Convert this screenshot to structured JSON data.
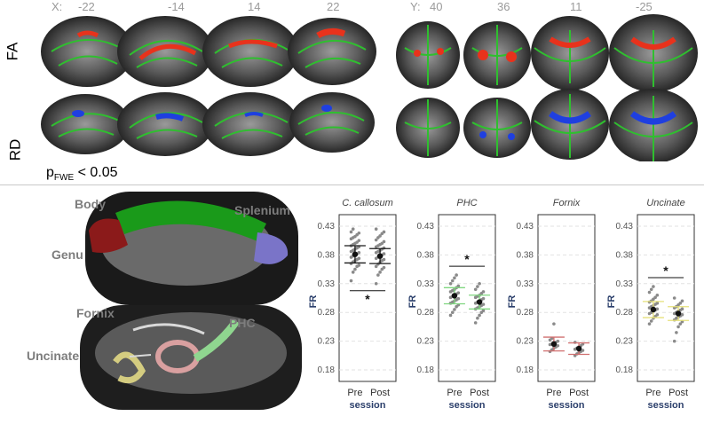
{
  "top_panel": {
    "x_prefix": "X:",
    "x_coords": [
      "-22",
      "-14",
      "14",
      "22"
    ],
    "y_prefix": "Y:",
    "y_coords": [
      "40",
      "36",
      "11",
      "-25"
    ],
    "row_labels": [
      "FA",
      "RD"
    ],
    "threshold_p": "p",
    "threshold_sub": "FWE",
    "threshold_rest": "< 0.05"
  },
  "tract_panel": {
    "labels": [
      "Body",
      "Splenium",
      "Genu",
      "Fornix",
      "PHC",
      "Uncinate"
    ]
  },
  "colors": {
    "fa_cluster": "#e8321c",
    "rd_cluster": "#1f3fe0",
    "skeleton": "#2fbf2f",
    "body_tract": "#1a9a1a",
    "genu_tract": "#8b1a1a",
    "splenium_tract": "#7a74c8",
    "fornix_tract": "#d9a0a0",
    "phc_tract": "#8fd68f",
    "uncinate_tract": "#d4cc80",
    "cc_bar": "#1a1a1a",
    "phc_bar": "#7fd67f",
    "fornix_bar": "#d07070",
    "uncinate_bar": "#e6e07a",
    "axis_label": "#2b3f6b"
  },
  "chart_data": [
    {
      "type": "scatter",
      "title": "C. callosum",
      "xlabel": "session",
      "ylabel": "FR",
      "categories": [
        "Pre",
        "Post"
      ],
      "ylim": [
        0.16,
        0.45
      ],
      "yticks": [
        "0.18",
        "0.23",
        "0.28",
        "0.33",
        "0.38",
        "0.43"
      ],
      "means": [
        0.381,
        0.378
      ],
      "ci_half_width": [
        0.015,
        0.013
      ],
      "significance": "*",
      "points": [
        [
          0.335,
          0.35,
          0.355,
          0.36,
          0.362,
          0.365,
          0.368,
          0.37,
          0.372,
          0.374,
          0.376,
          0.378,
          0.38,
          0.382,
          0.384,
          0.386,
          0.388,
          0.39,
          0.392,
          0.394,
          0.396,
          0.398,
          0.4,
          0.402,
          0.405,
          0.408,
          0.41,
          0.412,
          0.415,
          0.418,
          0.42,
          0.425
        ],
        [
          0.33,
          0.345,
          0.35,
          0.355,
          0.358,
          0.36,
          0.364,
          0.367,
          0.37,
          0.372,
          0.374,
          0.376,
          0.378,
          0.38,
          0.382,
          0.384,
          0.386,
          0.388,
          0.39,
          0.392,
          0.394,
          0.396,
          0.398,
          0.4,
          0.403,
          0.406,
          0.41,
          0.413,
          0.417,
          0.42,
          0.425
        ]
      ]
    },
    {
      "type": "scatter",
      "title": "PHC",
      "xlabel": "session",
      "ylabel": "FR",
      "categories": [
        "Pre",
        "Post"
      ],
      "ylim": [
        0.16,
        0.45
      ],
      "yticks": [
        "0.18",
        "0.23",
        "0.28",
        "0.33",
        "0.38",
        "0.43"
      ],
      "means": [
        0.309,
        0.298
      ],
      "ci_half_width": [
        0.014,
        0.012
      ],
      "significance": "*",
      "points": [
        [
          0.275,
          0.28,
          0.285,
          0.29,
          0.293,
          0.296,
          0.298,
          0.3,
          0.302,
          0.304,
          0.306,
          0.308,
          0.31,
          0.312,
          0.314,
          0.316,
          0.318,
          0.32,
          0.323,
          0.326,
          0.33,
          0.335,
          0.34,
          0.345
        ],
        [
          0.262,
          0.27,
          0.275,
          0.28,
          0.283,
          0.286,
          0.288,
          0.29,
          0.292,
          0.294,
          0.296,
          0.298,
          0.3,
          0.302,
          0.304,
          0.306,
          0.308,
          0.31,
          0.313,
          0.316,
          0.32,
          0.325,
          0.33
        ]
      ]
    },
    {
      "type": "scatter",
      "title": "Fornix",
      "xlabel": "session",
      "ylabel": "FR",
      "categories": [
        "Pre",
        "Post"
      ],
      "ylim": [
        0.16,
        0.45
      ],
      "yticks": [
        "0.18",
        "0.23",
        "0.28",
        "0.33",
        "0.38",
        "0.43"
      ],
      "means": [
        0.225,
        0.217
      ],
      "ci_half_width": [
        0.012,
        0.01
      ],
      "significance": "",
      "points": [
        [
          0.212,
          0.215,
          0.218,
          0.22,
          0.222,
          0.224,
          0.225,
          0.226,
          0.228,
          0.23,
          0.232,
          0.235,
          0.26
        ],
        [
          0.205,
          0.208,
          0.21,
          0.212,
          0.214,
          0.216,
          0.218,
          0.22,
          0.222,
          0.225,
          0.228
        ]
      ]
    },
    {
      "type": "scatter",
      "title": "Uncinate",
      "xlabel": "session",
      "ylabel": "FR",
      "categories": [
        "Pre",
        "Post"
      ],
      "ylim": [
        0.16,
        0.45
      ],
      "yticks": [
        "0.18",
        "0.23",
        "0.28",
        "0.33",
        "0.38",
        "0.43"
      ],
      "means": [
        0.285,
        0.278
      ],
      "ci_half_width": [
        0.014,
        0.012
      ],
      "significance": "*",
      "points": [
        [
          0.26,
          0.265,
          0.27,
          0.273,
          0.276,
          0.278,
          0.28,
          0.282,
          0.284,
          0.286,
          0.288,
          0.29,
          0.292,
          0.294,
          0.296,
          0.298,
          0.3,
          0.303,
          0.306,
          0.31,
          0.315,
          0.32,
          0.325
        ],
        [
          0.23,
          0.245,
          0.255,
          0.26,
          0.264,
          0.267,
          0.27,
          0.272,
          0.274,
          0.276,
          0.278,
          0.28,
          0.282,
          0.284,
          0.286,
          0.288,
          0.29,
          0.293,
          0.296,
          0.3,
          0.305
        ]
      ]
    }
  ]
}
